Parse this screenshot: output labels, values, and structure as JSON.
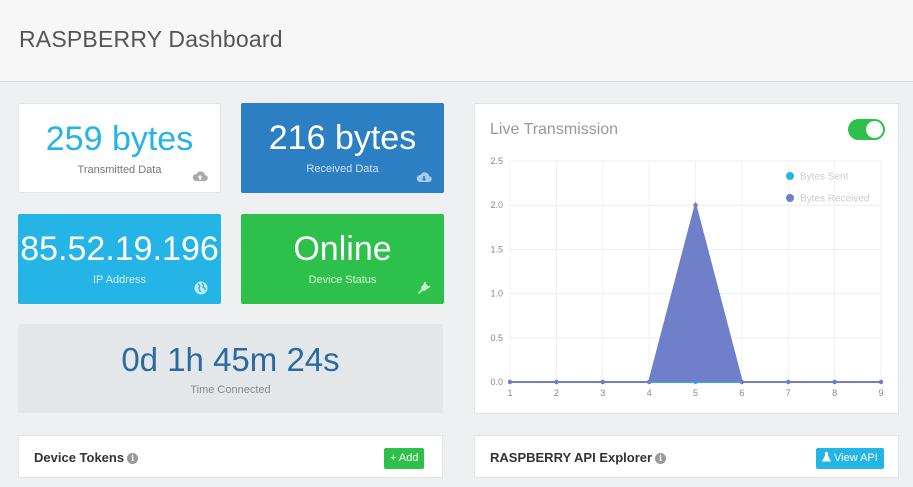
{
  "header": {
    "title": "RASPBERRY Dashboard"
  },
  "tiles": {
    "transmitted": {
      "value": "259 bytes",
      "label": "Transmitted Data",
      "icon": "cloud-upload-icon"
    },
    "received": {
      "value": "216 bytes",
      "label": "Received Data",
      "icon": "cloud-download-icon"
    },
    "ip": {
      "value": "85.52.19.196",
      "label": "IP Address",
      "icon": "globe-icon"
    },
    "status": {
      "value": "Online",
      "label": "Device Status",
      "icon": "plug-icon"
    },
    "time": {
      "value": "0d 1h 45m 24s",
      "label": "Time Connected"
    }
  },
  "chart_panel": {
    "title": "Live Transmission",
    "toggle_on": true
  },
  "chart_data": {
    "type": "area",
    "x": [
      1,
      2,
      3,
      4,
      5,
      6,
      7,
      8,
      9
    ],
    "series": [
      {
        "name": "Bytes Sent",
        "values": [
          0,
          0,
          0,
          0,
          0,
          0,
          0,
          0,
          0
        ],
        "color": "#25b4e6"
      },
      {
        "name": "Bytes Received",
        "values": [
          0,
          0,
          0,
          0,
          2,
          0,
          0,
          0,
          0
        ],
        "color": "#6f7fc9"
      }
    ],
    "yticks": [
      "0.0",
      "0.5",
      "1.0",
      "1.5",
      "2.0",
      "2.5"
    ],
    "ylim": [
      0,
      2.5
    ],
    "xlim": [
      1,
      9
    ],
    "grid": true,
    "legend": "top-right"
  },
  "tokens_panel": {
    "title": "Device Tokens",
    "button": "+ Add"
  },
  "api_panel": {
    "title": "RASPBERRY API Explorer",
    "button": "View API"
  },
  "colors": {
    "green": "#2dc14c",
    "blue": "#2c7fc2",
    "cyan": "#25b4e6",
    "purple": "#6f7fc9"
  }
}
